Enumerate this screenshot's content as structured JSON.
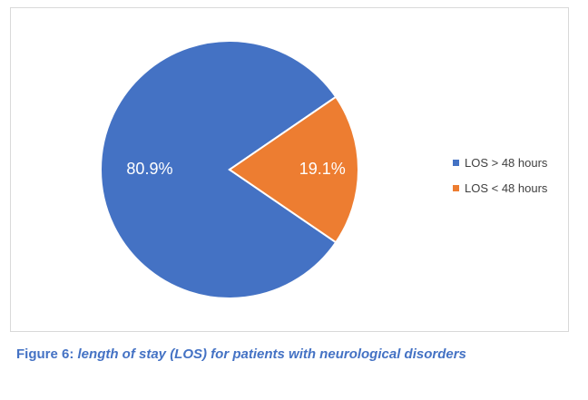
{
  "chart_data": {
    "type": "pie",
    "categories": [
      "LOS > 48 hours",
      "LOS < 48 hours"
    ],
    "values": [
      80.9,
      19.1
    ],
    "data_labels": [
      "80.9%",
      "19.1%"
    ],
    "colors": [
      "#4472c4",
      "#ed7d31"
    ],
    "legend_position": "right",
    "title": ""
  },
  "caption": {
    "prefix": "Figure 6:",
    "text": "length of stay (LOS) for patients with neurological disorders"
  }
}
